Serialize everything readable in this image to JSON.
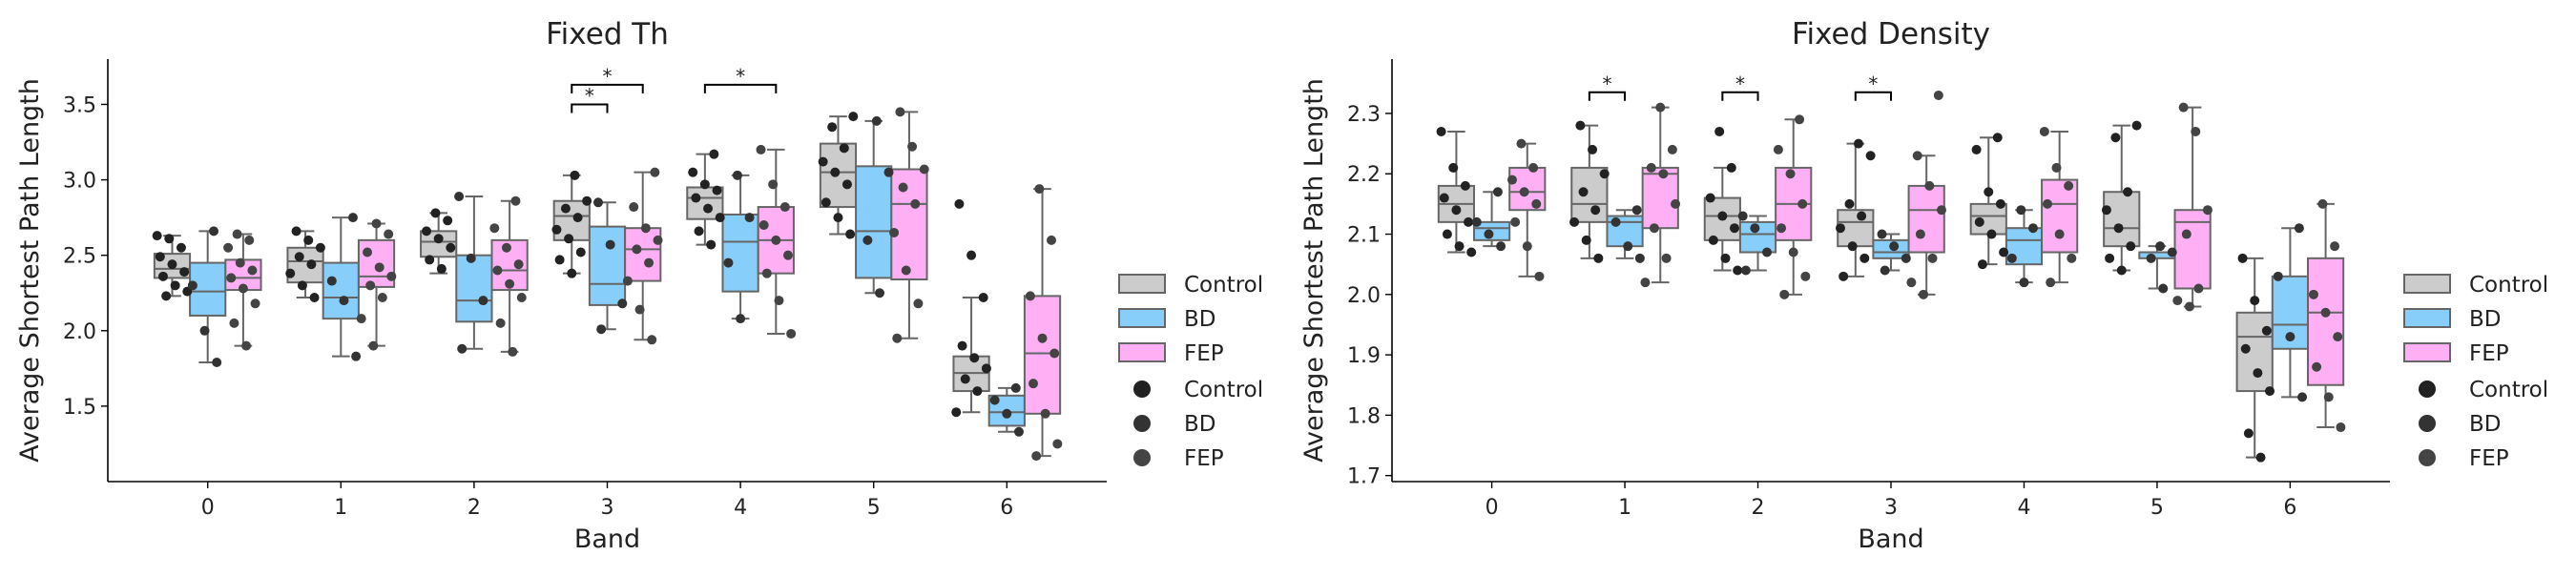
{
  "colors": {
    "control": "#cccccc",
    "bd": "#87cefa",
    "fep": "#ffb0f5",
    "box_edge": "#666666",
    "dot_control": "#222222",
    "dot_bd": "#333333",
    "dot_fep": "#444444"
  },
  "chart_data": [
    {
      "type": "box",
      "title": "Fixed Th",
      "xlabel": "Band",
      "ylabel": "Average Shortest Path Length",
      "categories": [
        "0",
        "1",
        "2",
        "3",
        "4",
        "5",
        "6"
      ],
      "ylim": [
        1.0,
        3.8
      ],
      "yticks": [
        "1.5",
        "2.0",
        "2.5",
        "3.0",
        "3.5"
      ],
      "legend_placement": "right",
      "legend_boxes": [
        "Control",
        "BD",
        "FEP"
      ],
      "legend_dots": [
        "Control",
        "BD",
        "FEP"
      ],
      "series": [
        {
          "name": "Control",
          "boxes": [
            {
              "min": 2.23,
              "q1": 2.35,
              "median": 2.41,
              "q3": 2.51,
              "max": 2.63
            },
            {
              "min": 2.22,
              "q1": 2.32,
              "median": 2.46,
              "q3": 2.55,
              "max": 2.66
            },
            {
              "min": 2.38,
              "q1": 2.49,
              "median": 2.59,
              "q3": 2.66,
              "max": 2.78
            },
            {
              "min": 2.38,
              "q1": 2.6,
              "median": 2.76,
              "q3": 2.86,
              "max": 3.03
            },
            {
              "min": 2.57,
              "q1": 2.74,
              "median": 2.88,
              "q3": 2.95,
              "max": 3.17
            },
            {
              "min": 2.64,
              "q1": 2.82,
              "median": 3.05,
              "q3": 3.24,
              "max": 3.42
            },
            {
              "min": 1.46,
              "q1": 1.6,
              "median": 1.72,
              "q3": 1.83,
              "max": 2.22
            }
          ],
          "points": [
            [
              2.63,
              2.61,
              2.55,
              2.49,
              2.44,
              2.39,
              2.36,
              2.3,
              2.26,
              2.23
            ],
            [
              2.66,
              2.6,
              2.55,
              2.49,
              2.44,
              2.38,
              2.3,
              2.22
            ],
            [
              2.78,
              2.73,
              2.66,
              2.61,
              2.55,
              2.47,
              2.41
            ],
            [
              3.03,
              2.86,
              2.81,
              2.75,
              2.67,
              2.61,
              2.52,
              2.47,
              2.38
            ],
            [
              3.17,
              3.05,
              2.97,
              2.93,
              2.88,
              2.81,
              2.75,
              2.66,
              2.57
            ],
            [
              3.42,
              3.35,
              3.21,
              3.12,
              3.05,
              2.97,
              2.85,
              2.75,
              2.64
            ],
            [
              2.84,
              2.5,
              2.22,
              1.9,
              1.82,
              1.75,
              1.68,
              1.6,
              1.46
            ]
          ]
        },
        {
          "name": "BD",
          "boxes": [
            {
              "min": 1.79,
              "q1": 2.1,
              "median": 2.26,
              "q3": 2.45,
              "max": 2.66
            },
            {
              "min": 1.83,
              "q1": 2.08,
              "median": 2.22,
              "q3": 2.45,
              "max": 2.75
            },
            {
              "min": 1.88,
              "q1": 2.06,
              "median": 2.2,
              "q3": 2.5,
              "max": 2.89
            },
            {
              "min": 2.01,
              "q1": 2.17,
              "median": 2.31,
              "q3": 2.69,
              "max": 2.85
            },
            {
              "min": 2.08,
              "q1": 2.26,
              "median": 2.59,
              "q3": 2.77,
              "max": 3.03
            },
            {
              "min": 2.25,
              "q1": 2.35,
              "median": 2.66,
              "q3": 3.09,
              "max": 3.39
            },
            {
              "min": 1.33,
              "q1": 1.37,
              "median": 1.46,
              "q3": 1.57,
              "max": 1.62
            }
          ],
          "points": [
            [
              2.66,
              2.3,
              2.0,
              1.79
            ],
            [
              2.75,
              2.33,
              2.2,
              1.83
            ],
            [
              2.89,
              2.48,
              2.2,
              1.88
            ],
            [
              2.85,
              2.57,
              2.18,
              2.01
            ],
            [
              3.03,
              2.75,
              2.45,
              2.08
            ],
            [
              3.39,
              3.05,
              2.6,
              2.25
            ],
            [
              1.62,
              1.54,
              1.45,
              1.33
            ]
          ]
        },
        {
          "name": "FEP",
          "boxes": [
            {
              "min": 1.9,
              "q1": 2.27,
              "median": 2.35,
              "q3": 2.47,
              "max": 2.64
            },
            {
              "min": 1.9,
              "q1": 2.29,
              "median": 2.36,
              "q3": 2.6,
              "max": 2.71
            },
            {
              "min": 1.86,
              "q1": 2.27,
              "median": 2.4,
              "q3": 2.6,
              "max": 2.86
            },
            {
              "min": 1.94,
              "q1": 2.33,
              "median": 2.54,
              "q3": 2.68,
              "max": 3.05
            },
            {
              "min": 1.98,
              "q1": 2.38,
              "median": 2.6,
              "q3": 2.82,
              "max": 3.2
            },
            {
              "min": 1.95,
              "q1": 2.34,
              "median": 2.84,
              "q3": 3.07,
              "max": 3.45
            },
            {
              "min": 1.17,
              "q1": 1.45,
              "median": 1.85,
              "q3": 2.23,
              "max": 2.94
            }
          ],
          "points": [
            [
              2.64,
              2.6,
              2.55,
              2.45,
              2.4,
              2.35,
              2.28,
              2.18,
              2.05,
              1.9
            ],
            [
              2.71,
              2.64,
              2.52,
              2.42,
              2.36,
              2.3,
              2.22,
              2.08,
              1.9
            ],
            [
              2.86,
              2.68,
              2.55,
              2.44,
              2.4,
              2.31,
              2.22,
              2.05,
              1.86
            ],
            [
              3.05,
              2.82,
              2.68,
              2.6,
              2.54,
              2.45,
              2.33,
              2.14,
              1.94
            ],
            [
              3.2,
              2.97,
              2.82,
              2.7,
              2.6,
              2.5,
              2.38,
              2.2,
              1.98
            ],
            [
              3.45,
              3.22,
              3.07,
              2.95,
              2.84,
              2.65,
              2.4,
              2.18,
              1.95
            ],
            [
              2.94,
              2.6,
              2.23,
              1.95,
              1.85,
              1.65,
              1.45,
              1.25,
              1.17
            ]
          ]
        }
      ],
      "annotations": [
        {
          "band": 3,
          "from": "Control",
          "to": "BD",
          "y": 3.5,
          "label": "*"
        },
        {
          "band": 3,
          "from": "Control",
          "to": "FEP",
          "y": 3.63,
          "label": "*"
        },
        {
          "band": 4,
          "from": "Control",
          "to": "FEP",
          "y": 3.63,
          "label": "*"
        }
      ]
    },
    {
      "type": "box",
      "title": "Fixed Density",
      "xlabel": "Band",
      "ylabel": "Average Shortest Path Length",
      "categories": [
        "0",
        "1",
        "2",
        "3",
        "4",
        "5",
        "6"
      ],
      "ylim": [
        1.69,
        2.39
      ],
      "yticks": [
        "1.7",
        "1.8",
        "1.9",
        "2.0",
        "2.1",
        "2.2",
        "2.3"
      ],
      "legend_placement": "right",
      "legend_boxes": [
        "Control",
        "BD",
        "FEP"
      ],
      "legend_dots": [
        "Control",
        "BD",
        "FEP"
      ],
      "series": [
        {
          "name": "Control",
          "boxes": [
            {
              "min": 2.07,
              "q1": 2.12,
              "median": 2.15,
              "q3": 2.18,
              "max": 2.27
            },
            {
              "min": 2.06,
              "q1": 2.12,
              "median": 2.15,
              "q3": 2.21,
              "max": 2.28
            },
            {
              "min": 2.04,
              "q1": 2.09,
              "median": 2.13,
              "q3": 2.16,
              "max": 2.21
            },
            {
              "min": 2.03,
              "q1": 2.08,
              "median": 2.12,
              "q3": 2.14,
              "max": 2.25
            },
            {
              "min": 2.05,
              "q1": 2.1,
              "median": 2.13,
              "q3": 2.15,
              "max": 2.26
            },
            {
              "min": 2.04,
              "q1": 2.08,
              "median": 2.11,
              "q3": 2.17,
              "max": 2.28
            },
            {
              "min": 1.73,
              "q1": 1.84,
              "median": 1.93,
              "q3": 1.97,
              "max": 2.06
            }
          ],
          "points": [
            [
              2.27,
              2.21,
              2.18,
              2.16,
              2.14,
              2.12,
              2.1,
              2.08,
              2.07
            ],
            [
              2.28,
              2.24,
              2.2,
              2.17,
              2.14,
              2.12,
              2.09,
              2.06
            ],
            [
              2.27,
              2.21,
              2.16,
              2.13,
              2.11,
              2.09,
              2.06,
              2.04
            ],
            [
              2.25,
              2.23,
              2.15,
              2.13,
              2.11,
              2.08,
              2.06,
              2.03
            ],
            [
              2.26,
              2.24,
              2.17,
              2.15,
              2.12,
              2.1,
              2.07,
              2.05
            ],
            [
              2.28,
              2.26,
              2.17,
              2.14,
              2.11,
              2.08,
              2.06,
              2.04
            ],
            [
              2.06,
              1.99,
              1.94,
              1.91,
              1.87,
              1.84,
              1.77,
              1.73
            ]
          ]
        },
        {
          "name": "BD",
          "boxes": [
            {
              "min": 2.08,
              "q1": 2.09,
              "median": 2.11,
              "q3": 2.12,
              "max": 2.17
            },
            {
              "min": 2.06,
              "q1": 2.08,
              "median": 2.12,
              "q3": 2.13,
              "max": 2.14
            },
            {
              "min": 2.04,
              "q1": 2.07,
              "median": 2.1,
              "q3": 2.12,
              "max": 2.13
            },
            {
              "min": 2.04,
              "q1": 2.06,
              "median": 2.07,
              "q3": 2.09,
              "max": 2.1
            },
            {
              "min": 2.02,
              "q1": 2.05,
              "median": 2.09,
              "q3": 2.11,
              "max": 2.14
            },
            {
              "min": 2.01,
              "q1": 2.06,
              "median": 2.07,
              "q3": 2.07,
              "max": 2.08
            },
            {
              "min": 1.83,
              "q1": 1.91,
              "median": 1.95,
              "q3": 2.03,
              "max": 2.11
            }
          ],
          "points": [
            [
              2.17,
              2.12,
              2.1,
              2.08
            ],
            [
              2.14,
              2.12,
              2.08,
              2.06
            ],
            [
              2.13,
              2.11,
              2.07,
              2.04
            ],
            [
              2.1,
              2.08,
              2.06,
              2.04
            ],
            [
              2.14,
              2.11,
              2.06,
              2.02
            ],
            [
              2.08,
              2.07,
              2.06,
              2.01
            ],
            [
              2.11,
              2.03,
              1.93,
              1.83
            ]
          ]
        },
        {
          "name": "FEP",
          "boxes": [
            {
              "min": 2.03,
              "q1": 2.14,
              "median": 2.17,
              "q3": 2.21,
              "max": 2.25
            },
            {
              "min": 2.02,
              "q1": 2.11,
              "median": 2.2,
              "q3": 2.21,
              "max": 2.31
            },
            {
              "min": 2.0,
              "q1": 2.09,
              "median": 2.15,
              "q3": 2.21,
              "max": 2.29
            },
            {
              "min": 2.0,
              "q1": 2.07,
              "median": 2.14,
              "q3": 2.18,
              "max": 2.23
            },
            {
              "min": 2.02,
              "q1": 2.07,
              "median": 2.15,
              "q3": 2.19,
              "max": 2.27
            },
            {
              "min": 1.98,
              "q1": 2.01,
              "median": 2.12,
              "q3": 2.14,
              "max": 2.31
            },
            {
              "min": 1.78,
              "q1": 1.85,
              "median": 1.97,
              "q3": 2.06,
              "max": 2.15
            }
          ],
          "points": [
            [
              2.25,
              2.21,
              2.19,
              2.17,
              2.15,
              2.12,
              2.08,
              2.03
            ],
            [
              2.31,
              2.24,
              2.21,
              2.2,
              2.15,
              2.11,
              2.06,
              2.02
            ],
            [
              2.29,
              2.24,
              2.2,
              2.15,
              2.11,
              2.07,
              2.03,
              2.0
            ],
            [
              2.33,
              2.23,
              2.18,
              2.14,
              2.1,
              2.06,
              2.02,
              2.0
            ],
            [
              2.27,
              2.21,
              2.18,
              2.15,
              2.1,
              2.06,
              2.02
            ],
            [
              2.31,
              2.27,
              2.14,
              2.1,
              2.01,
              1.99,
              1.98
            ],
            [
              2.15,
              2.08,
              2.0,
              1.97,
              1.93,
              1.88,
              1.83,
              1.78
            ]
          ]
        }
      ],
      "annotations": [
        {
          "band": 1,
          "from": "Control",
          "to": "BD",
          "y": 2.335,
          "label": "*"
        },
        {
          "band": 2,
          "from": "Control",
          "to": "BD",
          "y": 2.335,
          "label": "*"
        },
        {
          "band": 3,
          "from": "Control",
          "to": "BD",
          "y": 2.335,
          "label": "*"
        }
      ]
    }
  ]
}
